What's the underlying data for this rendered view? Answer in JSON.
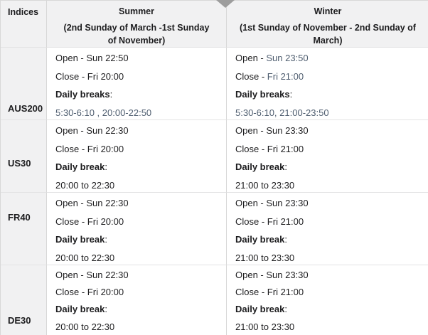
{
  "colors": {
    "muted_value_text": "#4e5d6f",
    "default_text": "#1d1d1f",
    "header_background": "#f1f1f2",
    "vertical_border": "#d8d8d8",
    "horizontal_border": "#e3e3e4",
    "arrow_gray": "#9d9d9d"
  },
  "icons": {
    "top_arrow": "down-triangle"
  },
  "table": {
    "header": {
      "indices": "Indices",
      "summer_title": "Summer",
      "summer_subtitle": "(2nd Sunday of March -1st Sunday of November)",
      "winter_title": "Winter",
      "winter_subtitle": "(1st Sunday of November - 2nd Sunday of March)"
    },
    "rows": [
      {
        "index": "AUS200",
        "summer": {
          "open": "Open - ",
          "open_value": "Sun 22:50",
          "close": "Close - ",
          "close_value": "Fri 20:00",
          "break_label": "Daily breaks",
          "break_colon": ":",
          "break_value": "5:30-6:10 , 20:00-22:50"
        },
        "winter": {
          "open": "Open - ",
          "open_value": "Sun 23:50",
          "close": "Close - ",
          "close_value": "Fri 21:00",
          "break_label": "Daily breaks",
          "break_colon": ":",
          "break_value": "5:30-6:10, 21:00-23:50"
        }
      },
      {
        "index": "US30",
        "summer": {
          "open": "Open - ",
          "open_value": "Sun 22:30",
          "close": "Close - ",
          "close_value": "Fri 20:00",
          "break_label": "Daily break",
          "break_colon": ":",
          "break_value": "20:00 to 22:30"
        },
        "winter": {
          "open": "Open - ",
          "open_value": "Sun 23:30",
          "close": "Close - ",
          "close_value": "Fri 21:00",
          "break_label": "Daily break",
          "break_colon": ":",
          "break_value": "21:00 to 23:30"
        }
      },
      {
        "index": "FR40",
        "summer": {
          "open": "Open - ",
          "open_value": "Sun 22:30",
          "close": "Close - ",
          "close_value": "Fri 20:00",
          "break_label": "Daily break",
          "break_colon": ":",
          "break_value": "20:00 to 22:30"
        },
        "winter": {
          "open": "Open - ",
          "open_value": "Sun 23:30",
          "close": "Close - ",
          "close_value": "Fri 21:00",
          "break_label": "Daily break",
          "break_colon": ":",
          "break_value": "21:00 to 23:30"
        }
      },
      {
        "index": "DE30",
        "summer": {
          "open": "Open - ",
          "open_value": "Sun 22:30",
          "close": "Close - ",
          "close_value": "Fri 20:00",
          "break_label": "Daily break",
          "break_colon": ":",
          "break_value": "20:00 to 22:30"
        },
        "winter": {
          "open": "Open - ",
          "open_value": "Sun 23:30",
          "close": "Close - ",
          "close_value": "Fri 21:00",
          "break_label": "Daily break",
          "break_colon": ":",
          "break_value": "21:00 to 23:30"
        }
      }
    ]
  }
}
